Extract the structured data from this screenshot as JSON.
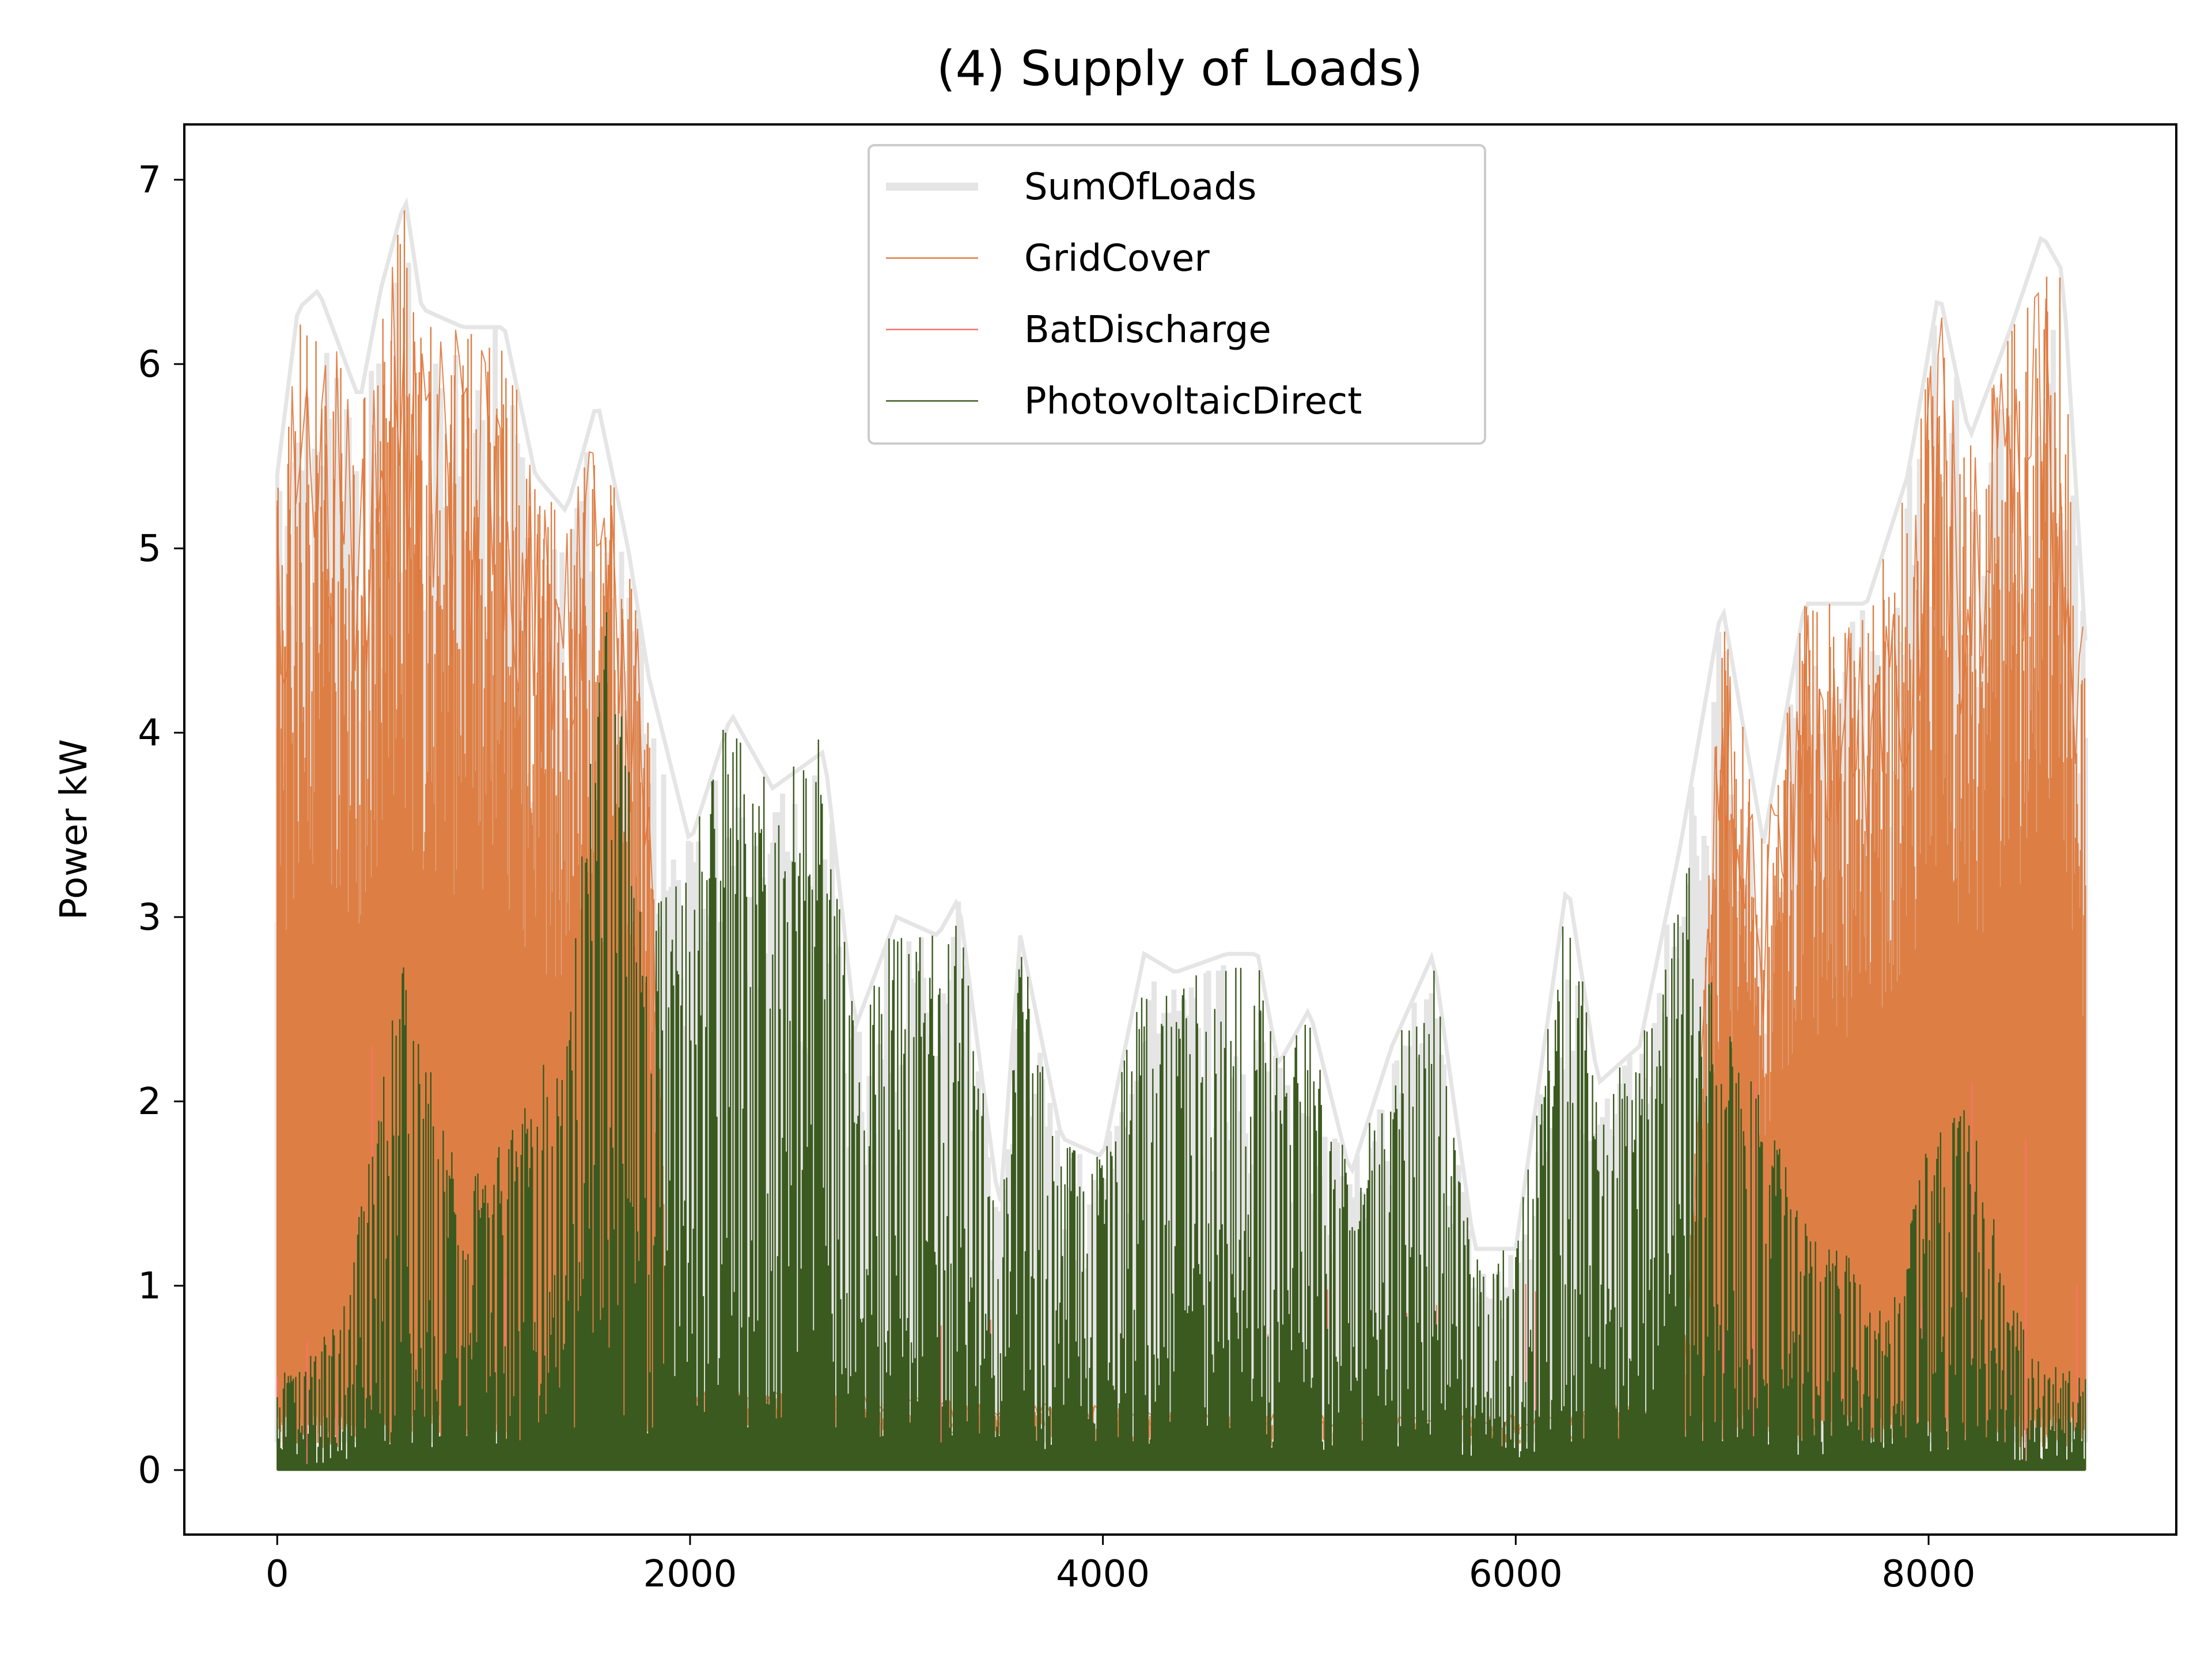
{
  "colors": {
    "SumOfLoads": "#e5e5e5",
    "GridCover": "#dd7f45",
    "GridCoverLine": "#e2743a",
    "BatDischarge": "#ff6f6f",
    "PhotovoltaicDirect": "#3b5a1f",
    "axes": "#000000",
    "background": "#ffffff"
  },
  "chart_data": {
    "type": "line",
    "title": "(4) Supply of Loads)",
    "xlabel": "",
    "ylabel": "Power kW",
    "xlim": [
      -450,
      9200
    ],
    "ylim": [
      -0.35,
      7.3
    ],
    "xticks": [
      0,
      2000,
      4000,
      6000,
      8000
    ],
    "xtick_labels": [
      "0",
      "2000",
      "4000",
      "6000",
      "8000"
    ],
    "yticks": [
      0,
      1,
      2,
      3,
      4,
      5,
      6,
      7
    ],
    "ytick_labels": [
      "0",
      "1",
      "2",
      "3",
      "4",
      "5",
      "6",
      "7"
    ],
    "grid": false,
    "legend_position": "upper center",
    "hours": 8760,
    "series": [
      {
        "name": "SumOfLoads",
        "envelope_x": [
          0,
          100,
          200,
          300,
          400,
          500,
          620,
          700,
          900,
          1100,
          1250,
          1400,
          1550,
          1700,
          1800,
          2000,
          2200,
          2400,
          2650,
          2800,
          3000,
          3200,
          3300,
          3500,
          3600,
          3800,
          4000,
          4200,
          4350,
          4600,
          4750,
          4850,
          5000,
          5200,
          5400,
          5600,
          5800,
          6000,
          6250,
          6400,
          6600,
          6800,
          7000,
          7200,
          7400,
          7550,
          7700,
          7900,
          8050,
          8200,
          8400,
          8550,
          8650,
          8760
        ],
        "envelope_y": [
          5.4,
          6.3,
          6.4,
          6.1,
          5.8,
          6.4,
          6.9,
          6.3,
          6.2,
          6.2,
          5.4,
          5.2,
          5.8,
          5.0,
          4.3,
          3.4,
          4.1,
          3.7,
          3.9,
          2.4,
          3.0,
          2.9,
          3.1,
          1.4,
          2.9,
          1.8,
          1.7,
          2.8,
          2.7,
          2.8,
          2.8,
          2.2,
          2.5,
          1.6,
          2.3,
          2.8,
          1.2,
          1.2,
          3.2,
          2.1,
          2.3,
          3.4,
          4.7,
          3.4,
          4.7,
          4.7,
          4.7,
          5.4,
          6.4,
          5.6,
          6.2,
          6.7,
          6.5,
          4.5
        ]
      },
      {
        "name": "GridCover",
        "envelope_x": [
          0,
          100,
          200,
          300,
          400,
          500,
          620,
          700,
          900,
          1100,
          1250,
          1400,
          1550,
          1700,
          1800,
          1900,
          2000,
          3000,
          4000,
          5000,
          6000,
          6800,
          7000,
          7200,
          7400,
          7550,
          7700,
          7900,
          8050,
          8200,
          8400,
          8550,
          8650,
          8760
        ],
        "envelope_y": [
          5.4,
          6.3,
          6.4,
          6.1,
          5.8,
          6.4,
          6.9,
          6.3,
          6.2,
          6.2,
          5.4,
          5.2,
          5.8,
          5.0,
          4.2,
          0.5,
          0.45,
          0.4,
          0.35,
          0.3,
          0.3,
          0.4,
          4.7,
          3.4,
          4.7,
          4.7,
          4.7,
          5.4,
          6.4,
          5.6,
          6.2,
          6.7,
          6.5,
          4.5
        ],
        "baseload_kw": 0.3
      },
      {
        "name": "BatDischarge",
        "spikes_x": [
          460,
          7070,
          7160,
          8210,
          8470,
          8720
        ],
        "spikes_y": [
          2.3,
          1.8,
          2.1,
          2.1,
          1.8,
          1.0
        ]
      },
      {
        "name": "PhotovoltaicDirect",
        "envelope_x": [
          0,
          300,
          600,
          900,
          1200,
          1400,
          1600,
          1800,
          2000,
          2150,
          2400,
          2650,
          2800,
          3000,
          3200,
          3300,
          3500,
          3600,
          3800,
          4000,
          4200,
          4350,
          4600,
          4750,
          4850,
          5000,
          5200,
          5400,
          5600,
          5800,
          6000,
          6250,
          6400,
          6600,
          6850,
          7000,
          7200,
          7400,
          7600,
          7800,
          8000,
          8200,
          8400,
          8600,
          8760
        ],
        "envelope_y": [
          0.5,
          0.8,
          2.8,
          1.5,
          2.0,
          2.5,
          4.9,
          3.0,
          3.4,
          4.1,
          3.7,
          4.0,
          2.4,
          3.0,
          2.9,
          3.1,
          1.4,
          2.9,
          1.8,
          1.7,
          2.8,
          2.7,
          2.8,
          2.8,
          2.2,
          2.5,
          1.6,
          2.3,
          2.8,
          1.2,
          1.2,
          3.2,
          2.1,
          2.3,
          3.4,
          2.5,
          2.0,
          1.4,
          1.2,
          0.8,
          1.8,
          2.0,
          0.9,
          0.6,
          0.5
        ],
        "daily_spikes": true
      }
    ]
  }
}
